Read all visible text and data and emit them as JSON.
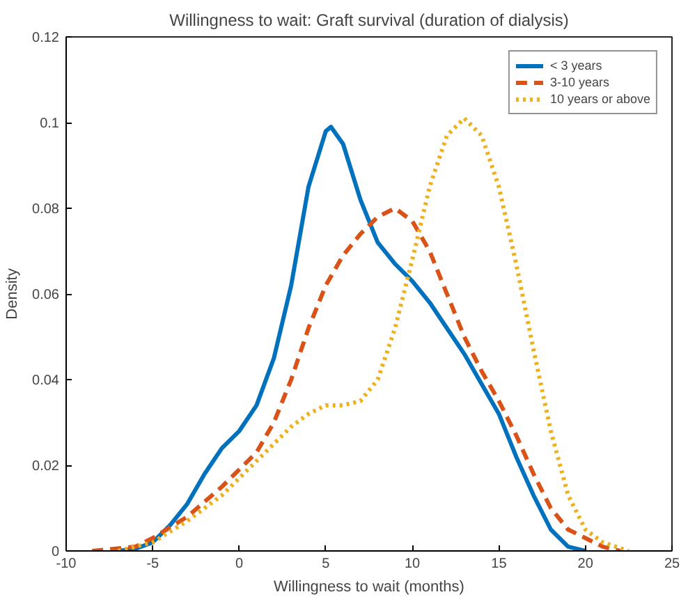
{
  "chart_data": {
    "type": "line",
    "title": "Willingness to wait: Graft survival (duration of dialysis)",
    "xlabel": "Willingness to wait (months)",
    "ylabel": "Density",
    "xlim": [
      -10,
      25
    ],
    "xticks": [
      -10,
      -5,
      0,
      5,
      10,
      15,
      20,
      25
    ],
    "ylim": [
      0,
      0.12
    ],
    "yticks": [
      0,
      0.02,
      0.04,
      0.06,
      0.08,
      0.1,
      0.12
    ],
    "grid": false,
    "legend": "top right",
    "marker": "none",
    "series": [
      {
        "name": "< 3 years",
        "color": "#0072bd",
        "line_style": "solid",
        "x": [
          -7,
          -6,
          -5,
          -4,
          -3,
          -2,
          -1,
          0,
          1,
          2,
          3,
          4,
          5,
          5.3,
          6,
          7,
          8,
          9,
          10,
          11,
          12,
          13,
          14,
          15,
          16,
          17,
          18,
          19,
          20
        ],
        "values": [
          0,
          0.0005,
          0.002,
          0.006,
          0.011,
          0.018,
          0.024,
          0.028,
          0.034,
          0.045,
          0.062,
          0.085,
          0.098,
          0.099,
          0.095,
          0.082,
          0.072,
          0.067,
          0.063,
          0.058,
          0.052,
          0.046,
          0.039,
          0.032,
          0.022,
          0.013,
          0.005,
          0.001,
          0
        ]
      },
      {
        "name": "3-10 years",
        "color": "#d95319",
        "line_style": "dashed",
        "x": [
          -8.5,
          -6,
          -5,
          -3,
          -1,
          0,
          1,
          2,
          3,
          4,
          5,
          6,
          7,
          8,
          9,
          10,
          11,
          12,
          13,
          14,
          15,
          16,
          17,
          18,
          19,
          20,
          21,
          22
        ],
        "values": [
          0,
          0.001,
          0.003,
          0.008,
          0.015,
          0.019,
          0.023,
          0.03,
          0.04,
          0.052,
          0.062,
          0.069,
          0.074,
          0.078,
          0.08,
          0.077,
          0.07,
          0.06,
          0.05,
          0.042,
          0.035,
          0.027,
          0.018,
          0.01,
          0.005,
          0.003,
          0.001,
          0
        ]
      },
      {
        "name": "10 years or above",
        "color": "#edb120",
        "line_style": "dotted",
        "x": [
          -7,
          -5,
          -3,
          -1,
          0,
          1,
          2,
          3,
          4,
          5,
          6,
          7,
          8,
          9,
          10,
          11,
          12,
          13,
          14,
          15,
          16,
          17,
          18,
          19,
          20,
          21,
          22.5
        ],
        "values": [
          0,
          0.002,
          0.007,
          0.013,
          0.017,
          0.021,
          0.025,
          0.029,
          0.032,
          0.034,
          0.034,
          0.035,
          0.04,
          0.052,
          0.068,
          0.085,
          0.097,
          0.101,
          0.097,
          0.085,
          0.067,
          0.047,
          0.028,
          0.013,
          0.005,
          0.002,
          0
        ]
      }
    ]
  }
}
